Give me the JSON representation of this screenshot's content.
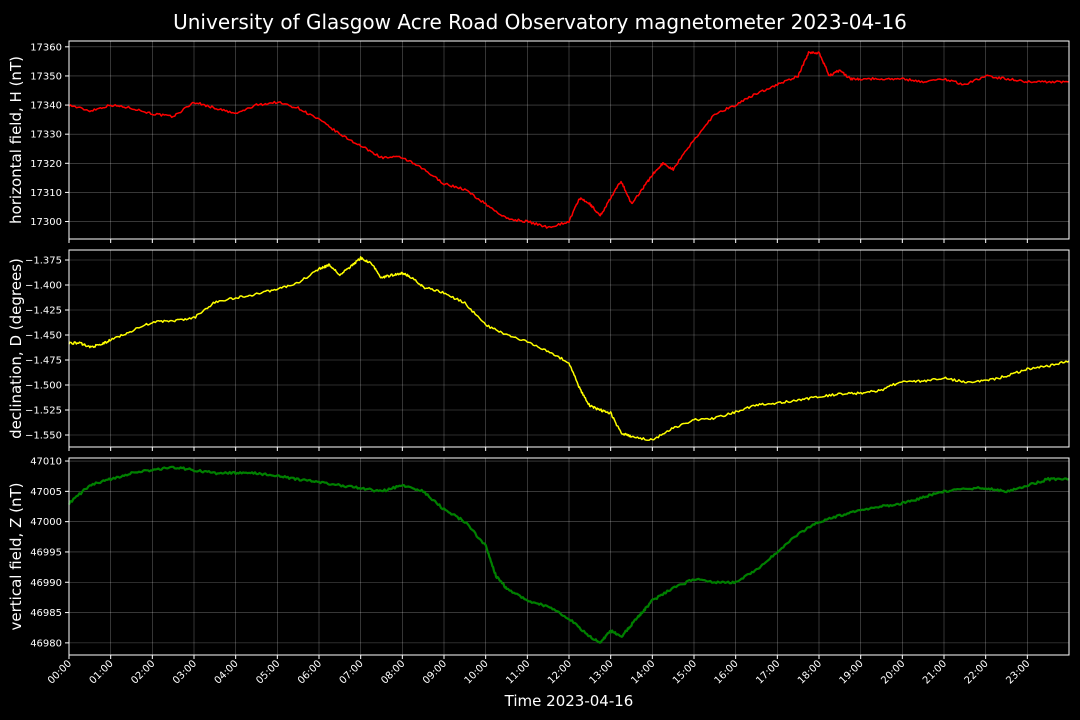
{
  "chart_data": {
    "title": "University of Glasgow Acre Road Observatory magnetometer 2023-04-16",
    "xlabel": "Time 2023-04-16",
    "x_ticks": [
      "00:00",
      "01:00",
      "02:00",
      "03:00",
      "04:00",
      "05:00",
      "06:00",
      "07:00",
      "08:00",
      "09:00",
      "10:00",
      "11:00",
      "12:00",
      "13:00",
      "14:00",
      "15:00",
      "16:00",
      "17:00",
      "18:00",
      "19:00",
      "20:00",
      "21:00",
      "22:00",
      "23:00"
    ],
    "xlim_hours": [
      0,
      24
    ],
    "grid": true,
    "panels": [
      {
        "type": "line",
        "ylabel": "horizontal field, H (nT)",
        "color": "#ff0000",
        "ylim": [
          17294,
          17362
        ],
        "y_ticks": [
          "17300",
          "17310",
          "17320",
          "17330",
          "17340",
          "17350",
          "17360"
        ],
        "y_tick_values": [
          17300,
          17310,
          17320,
          17330,
          17340,
          17350,
          17360
        ],
        "series": [
          {
            "x_hours": [
              0,
              0.5,
              1,
              1.5,
              2,
              2.5,
              3,
              3.5,
              4,
              4.5,
              5,
              5.5,
              6,
              6.5,
              7,
              7.5,
              8,
              8.5,
              9,
              9.5,
              10,
              10.5,
              11,
              11.5,
              12,
              12.25,
              12.5,
              12.75,
              13,
              13.25,
              13.5,
              13.75,
              14,
              14.25,
              14.5,
              15,
              15.5,
              16,
              16.5,
              17,
              17.5,
              17.75,
              18,
              18.25,
              18.5,
              18.75,
              19,
              19.5,
              20,
              20.5,
              21,
              21.5,
              22,
              22.5,
              23,
              23.5,
              24
            ],
            "values": [
              17340,
              17338,
              17340,
              17339,
              17337,
              17336,
              17341,
              17339,
              17337,
              17340,
              17341,
              17339,
              17335,
              17330,
              17326,
              17322,
              17322,
              17318,
              17313,
              17311,
              17306,
              17301,
              17300,
              17298,
              17300,
              17308,
              17306,
              17302,
              17308,
              17314,
              17306,
              17311,
              17316,
              17320,
              17318,
              17328,
              17337,
              17340,
              17344,
              17347,
              17350,
              17358,
              17358,
              17350,
              17352,
              17349,
              17349,
              17349,
              17349,
              17348,
              17349,
              17347,
              17350,
              17349,
              17348,
              17348,
              17348
            ]
          }
        ]
      },
      {
        "type": "line",
        "ylabel": "declination, D (degrees)",
        "color": "#ffff00",
        "ylim": [
          -1.562,
          -1.365
        ],
        "y_ticks": [
          "−1.375",
          "−1.400",
          "−1.425",
          "−1.450",
          "−1.475",
          "−1.500",
          "−1.525",
          "−1.550"
        ],
        "y_tick_values": [
          -1.375,
          -1.4,
          -1.425,
          -1.45,
          -1.475,
          -1.5,
          -1.525,
          -1.55
        ],
        "series": [
          {
            "x_hours": [
              0,
              0.25,
              0.5,
              0.75,
              1,
              1.5,
              2,
              2.5,
              3,
              3.5,
              4,
              4.5,
              5,
              5.5,
              6,
              6.25,
              6.5,
              6.75,
              7,
              7.25,
              7.5,
              7.75,
              8,
              8.25,
              8.5,
              9,
              9.5,
              10,
              10.5,
              11,
              11.5,
              12,
              12.25,
              12.5,
              12.75,
              13,
              13.25,
              13.5,
              14,
              14.5,
              15,
              15.5,
              16,
              16.5,
              17,
              17.5,
              18,
              18.5,
              19,
              19.5,
              20,
              20.5,
              21,
              21.5,
              22,
              22.5,
              23,
              23.5,
              24
            ],
            "values": [
              -1.458,
              -1.458,
              -1.462,
              -1.46,
              -1.455,
              -1.446,
              -1.437,
              -1.436,
              -1.433,
              -1.417,
              -1.413,
              -1.409,
              -1.404,
              -1.398,
              -1.384,
              -1.38,
              -1.39,
              -1.382,
              -1.373,
              -1.378,
              -1.393,
              -1.39,
              -1.388,
              -1.393,
              -1.402,
              -1.408,
              -1.418,
              -1.44,
              -1.45,
              -1.457,
              -1.466,
              -1.478,
              -1.503,
              -1.521,
              -1.525,
              -1.528,
              -1.548,
              -1.552,
              -1.555,
              -1.543,
              -1.535,
              -1.533,
              -1.527,
              -1.52,
              -1.518,
              -1.515,
              -1.512,
              -1.509,
              -1.508,
              -1.505,
              -1.496,
              -1.496,
              -1.493,
              -1.497,
              -1.496,
              -1.491,
              -1.484,
              -1.481,
              -1.476
            ]
          }
        ]
      },
      {
        "type": "line",
        "ylabel": "vertical field, Z (nT)",
        "color": "#008000",
        "ylim": [
          46978,
          47010.5
        ],
        "y_ticks": [
          "46980",
          "46985",
          "46990",
          "46995",
          "47000",
          "47005",
          "47010"
        ],
        "y_tick_values": [
          46980,
          46985,
          46990,
          46995,
          47000,
          47005,
          47010
        ],
        "series": [
          {
            "x_hours": [
              0,
              0.5,
              1,
              1.5,
              2,
              2.5,
              3,
              3.5,
              4,
              4.5,
              5,
              5.5,
              6,
              6.5,
              7,
              7.5,
              8,
              8.5,
              9,
              9.5,
              10,
              10.25,
              10.5,
              11,
              11.5,
              12,
              12.5,
              12.75,
              13,
              13.25,
              13.5,
              13.75,
              14,
              14.5,
              15,
              15.5,
              16,
              16.5,
              17,
              17.5,
              18,
              18.5,
              19,
              19.5,
              20,
              20.5,
              21,
              21.5,
              22,
              22.5,
              23,
              23.5,
              24
            ],
            "values": [
              47003,
              47006,
              47007,
              47008,
              47008.5,
              47009,
              47008.5,
              47008,
              47008,
              47008,
              47007.5,
              47007,
              47006.5,
              47006,
              47005.5,
              47005,
              47006,
              47005,
              47002,
              47000,
              46996,
              46991,
              46989,
              46987,
              46986,
              46984,
              46981,
              46980,
              46982,
              46981,
              46983,
              46985,
              46987,
              46989,
              46990.5,
              46990,
              46990,
              46992,
              46995,
              46998,
              47000,
              47001,
              47002,
              47002.5,
              47003,
              47004,
              47005,
              47005.5,
              47005.5,
              47005,
              47006,
              47007,
              47007
            ]
          }
        ]
      }
    ]
  }
}
